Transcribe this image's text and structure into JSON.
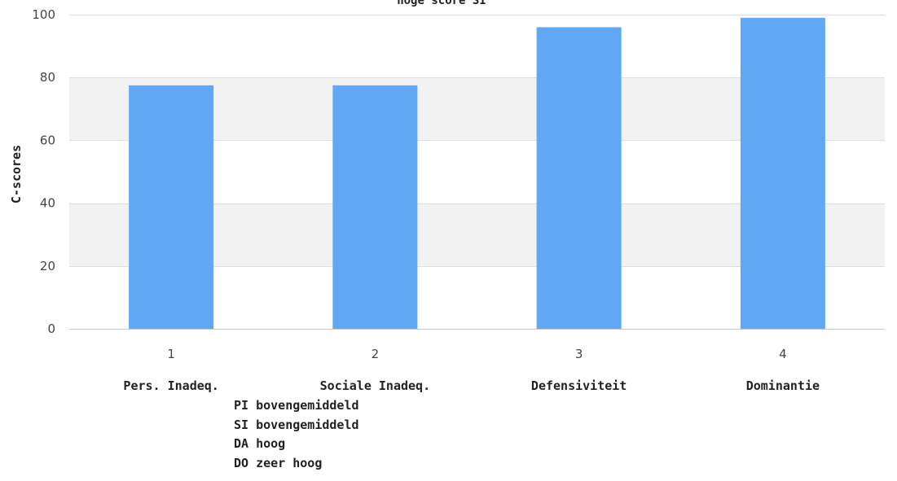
{
  "chart_data": {
    "type": "bar",
    "title": "hoge score SI",
    "xlabel": "",
    "ylabel": "C-scores",
    "ylim": [
      0,
      100
    ],
    "yticks": [
      0,
      20,
      40,
      60,
      80,
      100
    ],
    "categories": [
      "1",
      "2",
      "3",
      "4"
    ],
    "category_names": [
      "Pers. Inadeq.",
      "Sociale Inadeq.",
      "Defensiviteit",
      "Dominantie"
    ],
    "values": [
      77.5,
      77.5,
      96,
      99
    ],
    "bar_color": "#60a8f3",
    "band_color": "#f2f2f2",
    "grid": true
  },
  "notes": [
    "PI bovengemiddeld",
    "SI bovengemiddeld",
    "DA hoog",
    "DO zeer hoog"
  ]
}
